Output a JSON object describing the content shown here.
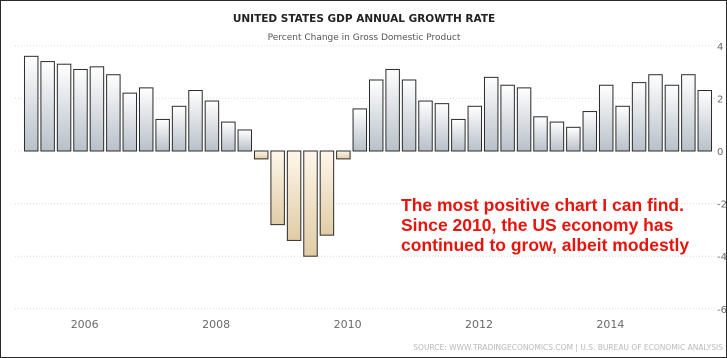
{
  "chart_data": {
    "type": "bar",
    "title": "UNITED STATES GDP ANNUAL GROWTH RATE",
    "subtitle": "Percent Change in Gross Domestic Product",
    "xlabel": "",
    "ylabel": "",
    "x_ticks": [
      "2006",
      "2008",
      "2010",
      "2012",
      "2014"
    ],
    "y_ticks": [
      "4",
      "2",
      "0",
      "-2",
      "-4",
      "-6"
    ],
    "ylim": [
      -6.0,
      4.2
    ],
    "grid": true,
    "values": [
      3.6,
      3.4,
      3.3,
      3.1,
      3.2,
      2.9,
      2.2,
      2.4,
      1.2,
      1.7,
      2.3,
      1.9,
      1.1,
      0.8,
      -0.3,
      -2.8,
      -3.4,
      -4.0,
      -3.2,
      -0.3,
      1.6,
      2.7,
      3.1,
      2.7,
      1.9,
      1.8,
      1.2,
      1.7,
      2.8,
      2.5,
      2.4,
      1.3,
      1.1,
      0.9,
      1.5,
      2.5,
      1.7,
      2.6,
      2.9,
      2.5,
      2.9,
      2.3
    ],
    "colors": {
      "positive_top": "#ffffff",
      "positive_bottom": "#b8c0c9",
      "negative_top": "#fff7ea",
      "negative_bottom": "#e0cca6",
      "bar_stroke": "#2b2b2b",
      "annotation": "#e8140c"
    }
  },
  "annotation": "The most positive chart I can find. Since 2010, the US economy has continued to grow, albeit modestly",
  "source": "SOURCE: WWW.TRADINGECONOMICS.COM | U.S. BUREAU OF ECONOMIC ANALYSIS"
}
